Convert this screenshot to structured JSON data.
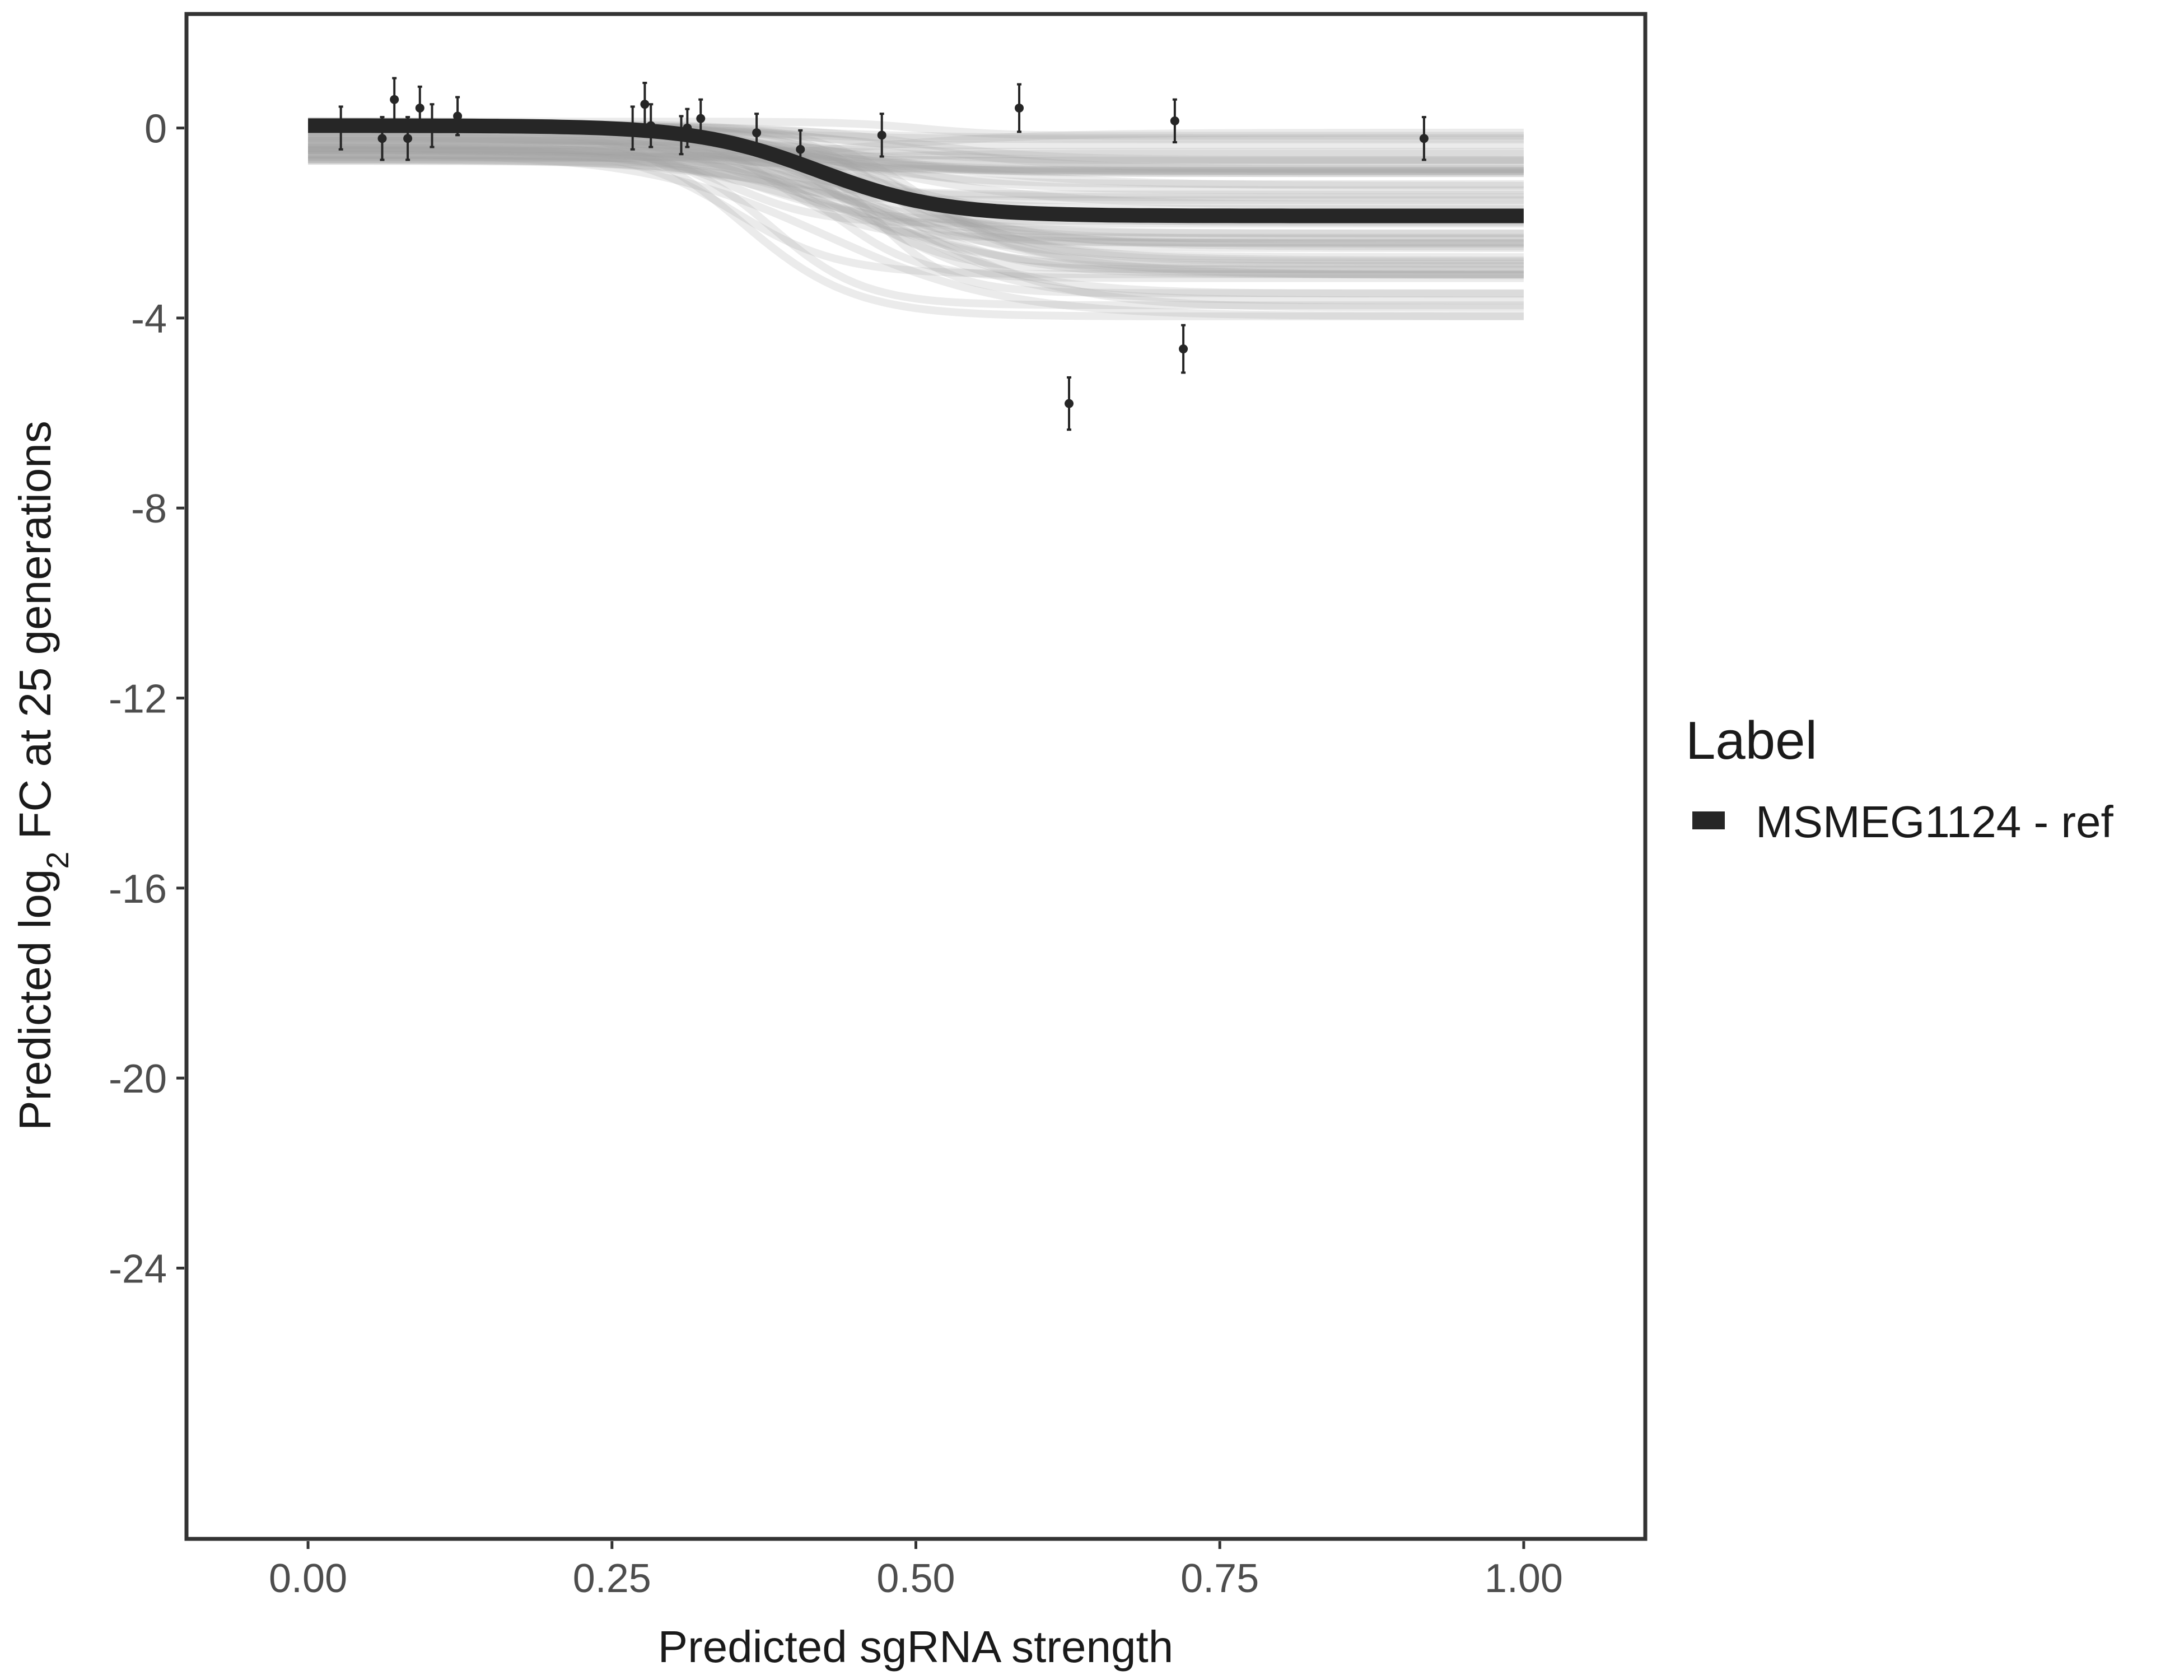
{
  "chart_data": {
    "type": "line",
    "xlabel": "Predicted sgRNA strength",
    "ylabel": {
      "prefix": "Predicted  log",
      "subscript": "2",
      "suffix": " FC at 25 generations"
    },
    "xlim": [
      -0.1,
      1.1
    ],
    "ylim": [
      -29.7,
      2.4
    ],
    "x_ticks": [
      0.0,
      0.25,
      0.5,
      0.75,
      1.0
    ],
    "x_tick_labels": [
      "0.00",
      "0.25",
      "0.50",
      "0.75",
      "1.00"
    ],
    "y_ticks": [
      0,
      -4,
      -8,
      -12,
      -16,
      -20,
      -24
    ],
    "y_tick_labels": [
      "0",
      "-4",
      "-8",
      "-12",
      "-16",
      "-20",
      "-24"
    ],
    "grid": false,
    "legend": {
      "title": "Label",
      "position": "right",
      "entries": [
        {
          "name": "MSMEG1124 - ref",
          "color": "#262626"
        }
      ]
    },
    "fit_curve": {
      "name": "MSMEG1124 - ref",
      "model": "logistic",
      "upper": 0.05,
      "lower": -1.85,
      "midpoint": 0.42,
      "scale": 0.05,
      "color": "#262626"
    },
    "posterior_band": {
      "color": "#a6a6a6",
      "n_draws": 60,
      "upper_range": [
        -0.7,
        0.15
      ],
      "lower_range": [
        -4.0,
        0.0
      ],
      "midpoint_range": [
        0.33,
        0.52
      ],
      "scale_range": [
        0.03,
        0.08
      ]
    },
    "points": [
      {
        "x": 0.027,
        "y": 0.0,
        "err": 0.45
      },
      {
        "x": 0.061,
        "y": -0.22,
        "err": 0.45
      },
      {
        "x": 0.071,
        "y": 0.6,
        "err": 0.45
      },
      {
        "x": 0.082,
        "y": -0.22,
        "err": 0.45
      },
      {
        "x": 0.092,
        "y": 0.42,
        "err": 0.45
      },
      {
        "x": 0.102,
        "y": 0.05,
        "err": 0.45
      },
      {
        "x": 0.123,
        "y": 0.25,
        "err": 0.4
      },
      {
        "x": 0.267,
        "y": 0.0,
        "err": 0.45
      },
      {
        "x": 0.277,
        "y": 0.5,
        "err": 0.45
      },
      {
        "x": 0.282,
        "y": 0.05,
        "err": 0.45
      },
      {
        "x": 0.307,
        "y": -0.15,
        "err": 0.4
      },
      {
        "x": 0.312,
        "y": 0.0,
        "err": 0.4
      },
      {
        "x": 0.323,
        "y": 0.2,
        "err": 0.4
      },
      {
        "x": 0.369,
        "y": -0.1,
        "err": 0.4
      },
      {
        "x": 0.405,
        "y": -0.45,
        "err": 0.4
      },
      {
        "x": 0.472,
        "y": -0.15,
        "err": 0.45
      },
      {
        "x": 0.585,
        "y": 0.42,
        "err": 0.5
      },
      {
        "x": 0.626,
        "y": -5.8,
        "err": 0.55
      },
      {
        "x": 0.713,
        "y": 0.15,
        "err": 0.45
      },
      {
        "x": 0.72,
        "y": -4.65,
        "err": 0.5
      },
      {
        "x": 0.918,
        "y": -0.22,
        "err": 0.45
      }
    ]
  }
}
